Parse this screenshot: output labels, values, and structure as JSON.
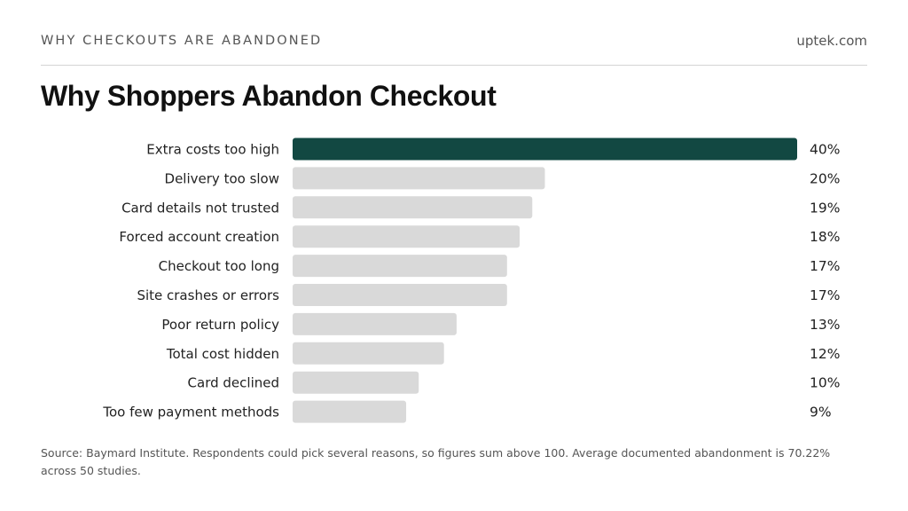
{
  "header": {
    "kicker": "WHY CHECKOUTS ARE ABANDONED",
    "site": "uptek.com",
    "title": "Why Shoppers Abandon Checkout"
  },
  "footer": {
    "source": "Source: Baymard Institute. Respondents could pick several reasons, so figures sum above 100. Average documented abandonment is 70.22% across 50 studies."
  },
  "colors": {
    "highlight": "#124842",
    "bar": "#d9d9d9"
  },
  "chart_data": {
    "type": "bar",
    "orientation": "horizontal",
    "title": "Why Shoppers Abandon Checkout",
    "xlabel": "",
    "ylabel": "",
    "xlim": [
      0,
      40
    ],
    "grid": false,
    "value_suffix": "%",
    "highlight_index": 0,
    "categories": [
      "Extra costs too high",
      "Delivery too slow",
      "Card details not trusted",
      "Forced account creation",
      "Checkout too long",
      "Site crashes or errors",
      "Poor return policy",
      "Total cost hidden",
      "Card declined",
      "Too few payment methods"
    ],
    "values": [
      40,
      20,
      19,
      18,
      17,
      17,
      13,
      12,
      10,
      9
    ]
  }
}
